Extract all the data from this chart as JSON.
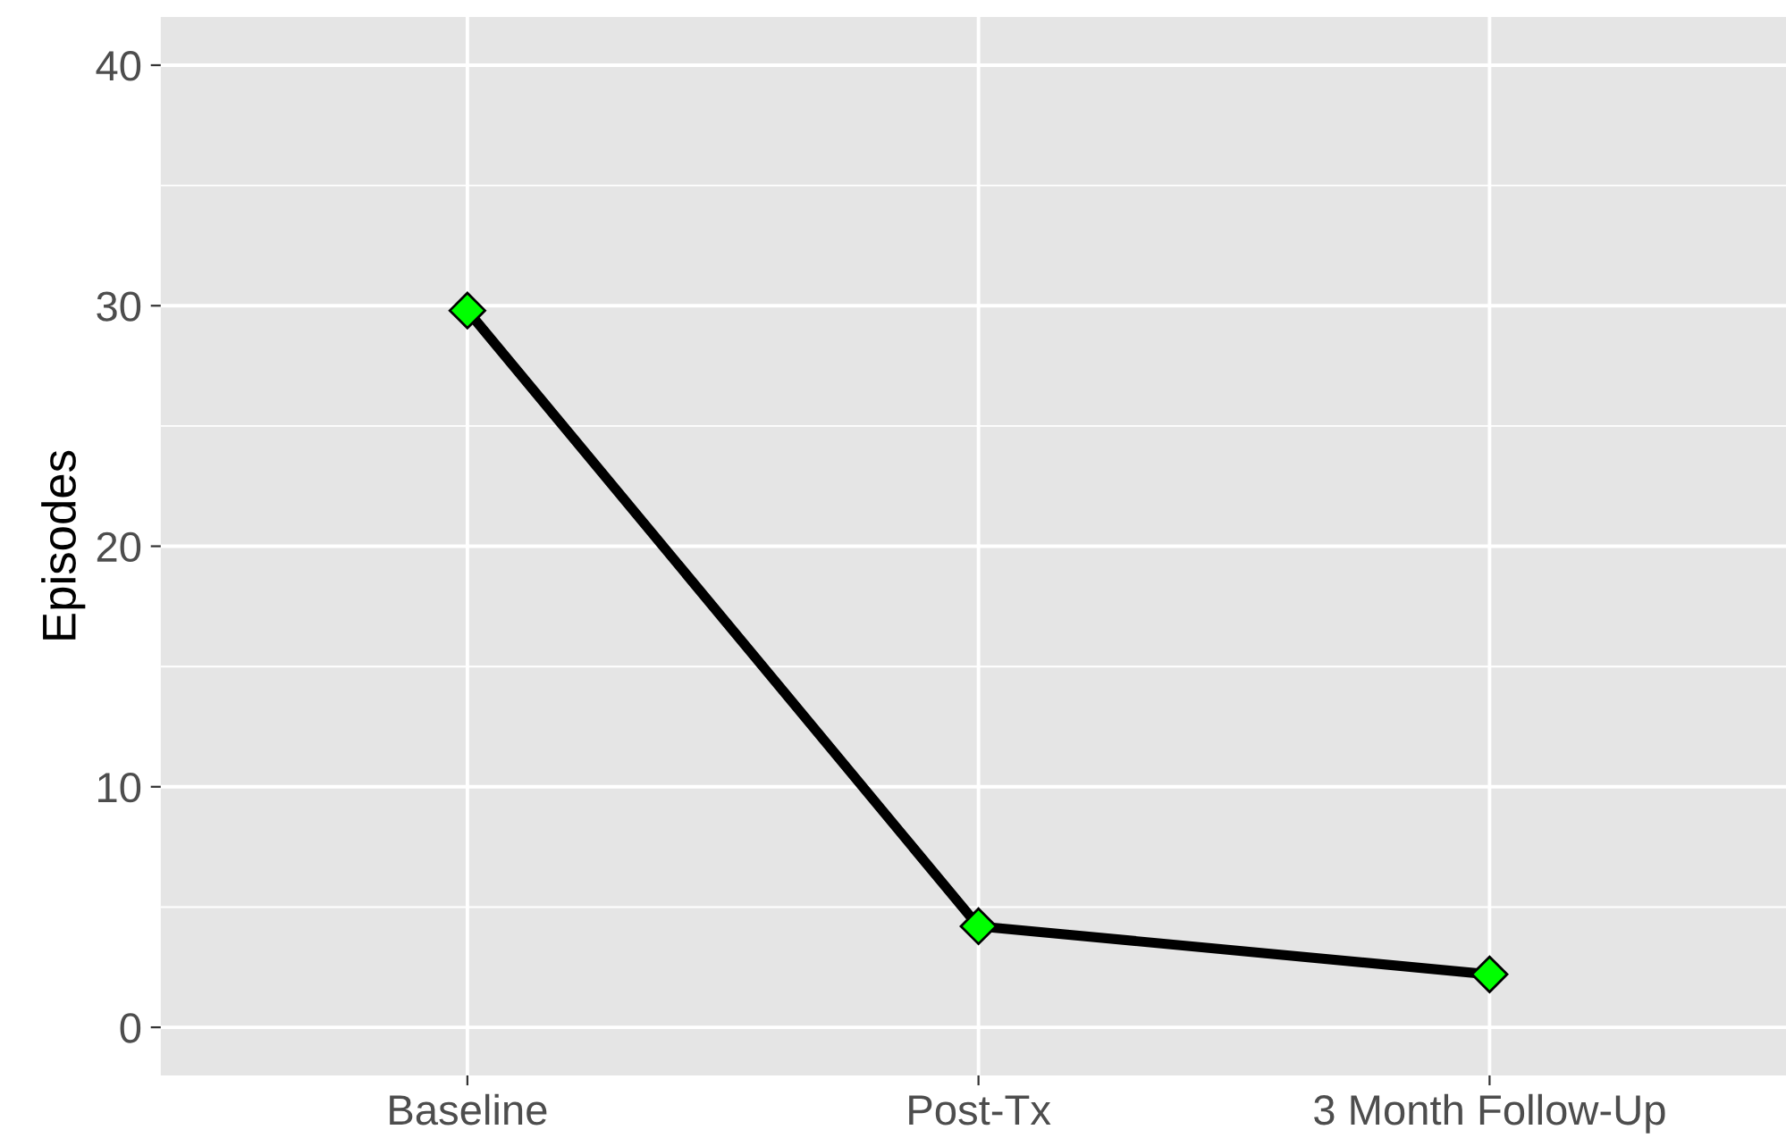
{
  "chart_data": {
    "type": "line",
    "ylabel": "Episodes",
    "categories": [
      "Baseline",
      "Post-Tx",
      "3 Month Follow-Up"
    ],
    "series": [
      {
        "color": "#000000",
        "colors": [
          "#00ff00",
          "#00ff00",
          "#00ff00"
        ],
        "values": [
          29.8,
          4.2,
          2.2
        ]
      }
    ],
    "marker": "diamond",
    "line_style": "solid",
    "ylim": [
      -2.0,
      42.0
    ],
    "yticks": [
      0,
      10,
      20,
      30,
      40
    ],
    "grid": true
  }
}
